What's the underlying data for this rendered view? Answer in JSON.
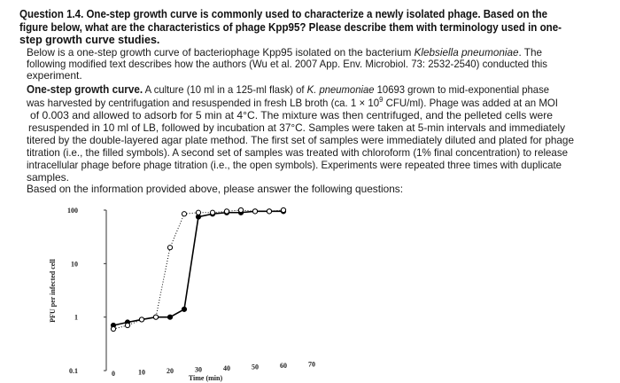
{
  "question_lines": [
    "Question 1.4. One-step growth curve is commonly used to characterize a newly isolated phage. Based on the",
    "figure below, what are the characteristics of phage Kpp95? Please describe them with terminology used in one-",
    "step growth curve studies."
  ],
  "intro_lines": [
    [
      "Below is a one-step growth curve of bacteriophage Kpp95 isolated on the bacterium ",
      "Klebsiella pneumoniae",
      ". The"
    ],
    "following modified text describes how the authors (Wu et al. 2007 App. Env. Microbiol. 73: 2532-2540) conducted this",
    "experiment."
  ],
  "methods_lines": [
    [
      "One-step growth curve.",
      " A culture (10 ml in a 125-ml flask) of ",
      "K. pneumoniae",
      " 10693 grown to mid-exponential phase"
    ],
    [
      "was harvested by centrifugation and resuspended in fresh LB broth (ca. 1 × 10",
      "9",
      " CFU/ml). Phage was added at an MOI"
    ],
    "of 0.003 and allowed to adsorb for 5 min at 4°C. The mixture was then centrifuged, and the pelleted cells were",
    "resuspended in 10 ml of LB, followed by incubation at 37°C. Samples were taken at 5-min intervals and immediately",
    "titered by the double-layered agar plate method. The first set of samples were immediately diluted and plated for phage",
    "titration (i.e., the filled symbols). A second set of samples was treated with chloroform (1% final concentration) to release",
    "intracellular phage before phage titration (i.e., the open symbols). Experiments were repeated three times with duplicate",
    "samples."
  ],
  "prompt": "Based on the information provided above, please answer the following questions:",
  "chart_data": {
    "type": "line",
    "x_label": "Time (min)",
    "y_label": "PFU per infected cell",
    "x": [
      0,
      5,
      10,
      15,
      20,
      25,
      30,
      35,
      40,
      45,
      50,
      55,
      60
    ],
    "series": [
      {
        "color": "#000000",
        "filled": true,
        "linestyle": "solid",
        "values": [
          0.7,
          0.8,
          0.9,
          1.0,
          1.0,
          1.4,
          75,
          85,
          90,
          90,
          95,
          95,
          95
        ]
      },
      {
        "color": "#000000",
        "filled": false,
        "linestyle": "dotted",
        "values": [
          0.6,
          0.7,
          0.9,
          1.0,
          20,
          85,
          90,
          90,
          95,
          100,
          95,
          95,
          100
        ]
      }
    ],
    "xlim": [
      0,
      70
    ],
    "xticks": [
      0,
      10,
      20,
      30,
      40,
      50,
      60,
      70
    ],
    "ylim": [
      0.1,
      100
    ],
    "yticks": [
      0.1,
      1,
      10,
      100
    ],
    "log_y": true
  }
}
